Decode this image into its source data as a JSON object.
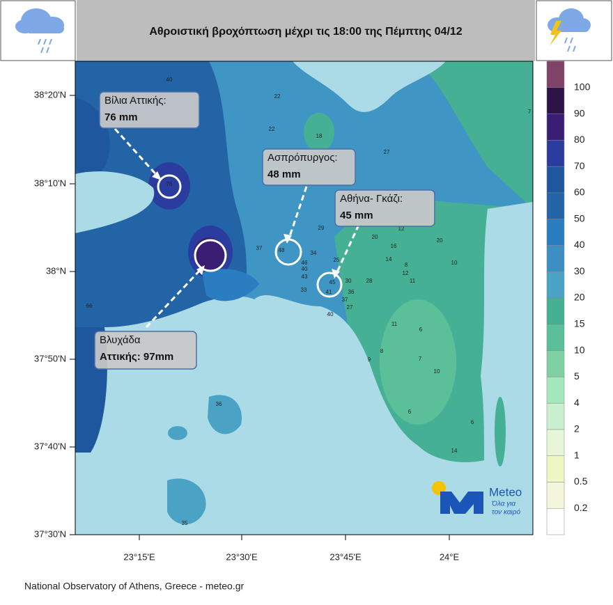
{
  "header": {
    "title": "Αθροιστική βροχόπτωση μέχρι τις 18:00  της Πέμπτης 04/12"
  },
  "map": {
    "lat_labels": [
      "38°20'N",
      "38°10'N",
      "38°N",
      "37°50'N",
      "37°40'N",
      "37°30'N"
    ],
    "lon_labels": [
      "23°15'E",
      "23°30'E",
      "23°45'E",
      "24°E"
    ],
    "stations": [
      40,
      22,
      22,
      18,
      27,
      29,
      37,
      48,
      46,
      34,
      40,
      43,
      45,
      41,
      30,
      28,
      25,
      33,
      20,
      16,
      12,
      14,
      8,
      12,
      11,
      20,
      10,
      36,
      37,
      27,
      40,
      11,
      6,
      8,
      9,
      7,
      10,
      6,
      6,
      14,
      36,
      35,
      66,
      76,
      7
    ],
    "callouts": [
      {
        "lines": [
          "Βίλια Αττικής:",
          "76 mm"
        ]
      },
      {
        "lines": [
          "Ασπρόπυργος:",
          "48 mm"
        ]
      },
      {
        "lines": [
          "Αθήνα- Γκάζι:",
          "45 mm"
        ]
      },
      {
        "lines": [
          "Βλυχάδα",
          "Αττικής: 97mm"
        ]
      }
    ]
  },
  "colorbar": {
    "levels": [
      0.2,
      0.5,
      1,
      2,
      4,
      5,
      10,
      15,
      20,
      30,
      40,
      50,
      60,
      70,
      80,
      90,
      100
    ],
    "colors": [
      "#ffffff",
      "#f3f6dc",
      "#eef6c4",
      "#e6f7d8",
      "#c9f1d0",
      "#a6e8bd",
      "#7fd1a4",
      "#5bbf9a",
      "#45b094",
      "#4aa3c4",
      "#3c8ec3",
      "#2a7dc0",
      "#2364a6",
      "#1f579e",
      "#2a3d9e",
      "#3a1e73",
      "#2c1449",
      "#7e4366"
    ]
  },
  "logo": {
    "name": "Meteo",
    "tagline": [
      "Όλα για",
      "τον καιρό"
    ]
  },
  "footer": {
    "text": "National Observatory of Athens, Greece - meteo.gr"
  }
}
